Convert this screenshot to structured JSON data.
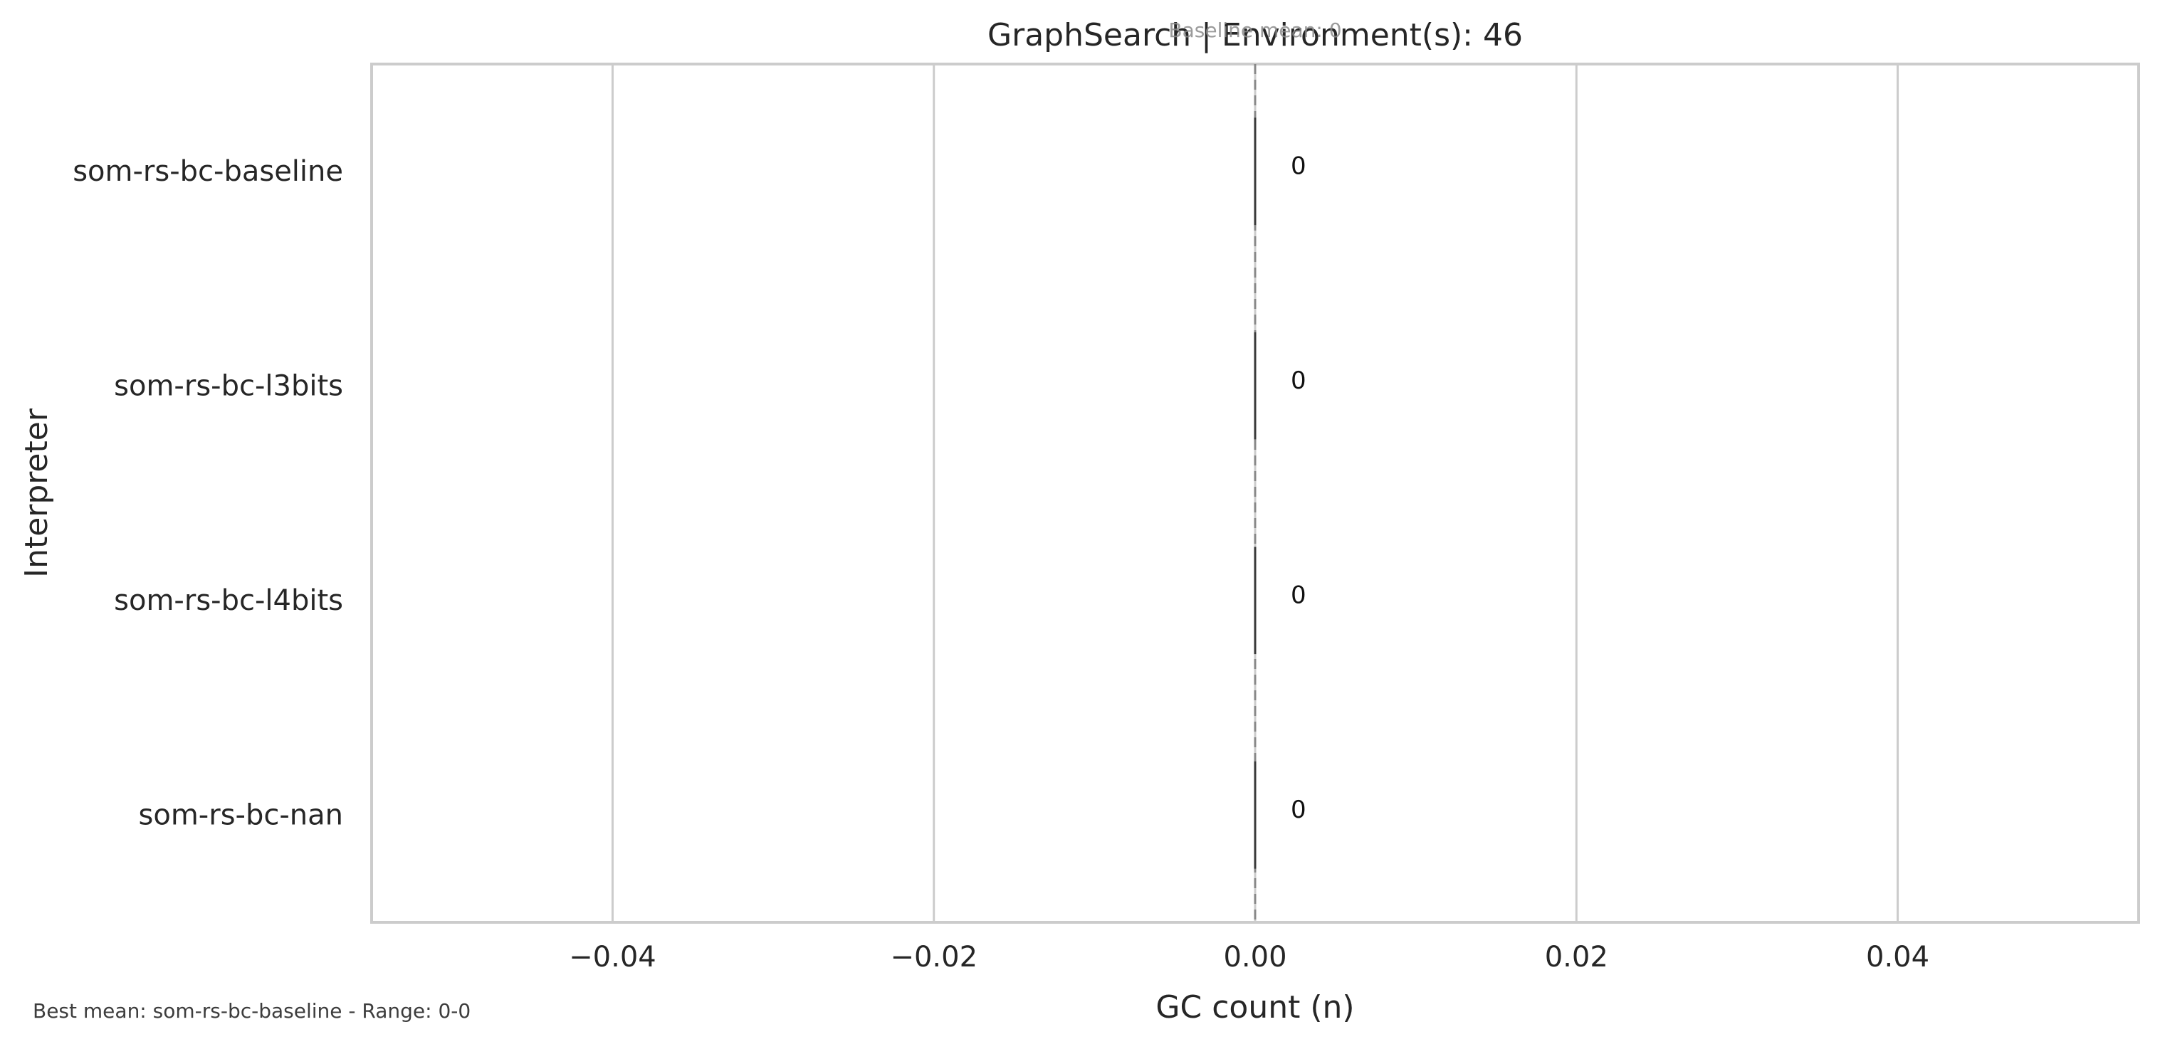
{
  "chart_data": {
    "type": "bar",
    "orientation": "horizontal",
    "title": "GraphSearch | Environment(s): 46",
    "annotation": "Baseline mean: 0",
    "xlabel": "GC count (n)",
    "ylabel": "Interpreter",
    "categories": [
      "som-rs-bc-baseline",
      "som-rs-bc-l3bits",
      "som-rs-bc-l4bits",
      "som-rs-bc-nan"
    ],
    "values": [
      0,
      0,
      0,
      0
    ],
    "value_labels": [
      "0",
      "0",
      "0",
      "0"
    ],
    "baseline_mean": 0,
    "xlim": [
      -0.055,
      0.055
    ],
    "xticks": [
      -0.04,
      -0.02,
      0.0,
      0.02,
      0.04
    ],
    "xtick_labels": [
      "−0.04",
      "−0.02",
      "0.00",
      "0.02",
      "0.04"
    ],
    "grid": true,
    "colors": {
      "grid": "#cccccc",
      "frame": "#cccccc",
      "bar_edge": "#3a3a3a",
      "baseline_line": "#888888",
      "text": "#262626"
    }
  },
  "footer_text": "Best mean: som-rs-bc-baseline - Range: 0-0"
}
